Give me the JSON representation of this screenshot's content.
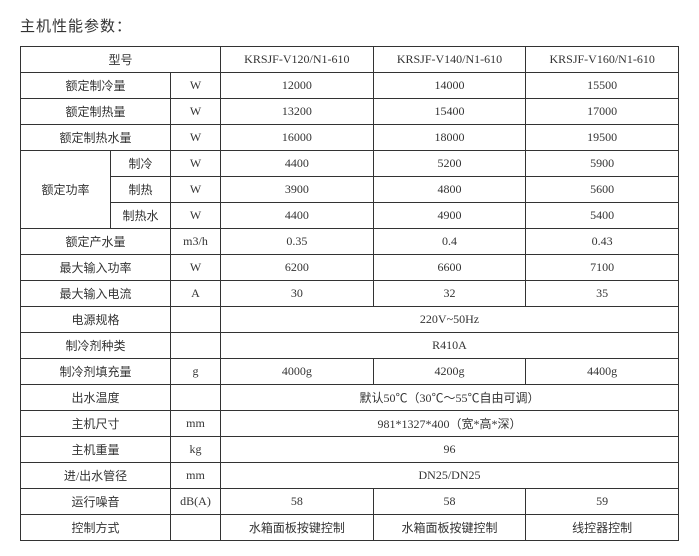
{
  "title": "主机性能参数：",
  "header": {
    "model_label": "型号",
    "models": [
      "KRSJF-V120/N1-610",
      "KRSJF-V140/N1-610",
      "KRSJF-V160/N1-610"
    ]
  },
  "rows": {
    "cooling_cap": {
      "label": "额定制冷量",
      "unit": "W",
      "vals": [
        "12000",
        "14000",
        "15500"
      ]
    },
    "heating_cap": {
      "label": "额定制热量",
      "unit": "W",
      "vals": [
        "13200",
        "15400",
        "17000"
      ]
    },
    "hotwater_cap": {
      "label": "额定制热水量",
      "unit": "W",
      "vals": [
        "16000",
        "18000",
        "19500"
      ]
    },
    "rated_power": {
      "label": "额定功率",
      "sub": {
        "cool": {
          "label": "制冷",
          "unit": "W",
          "vals": [
            "4400",
            "5200",
            "5900"
          ]
        },
        "heat": {
          "label": "制热",
          "unit": "W",
          "vals": [
            "3900",
            "4800",
            "5600"
          ]
        },
        "water": {
          "label": "制热水",
          "unit": "W",
          "vals": [
            "4400",
            "4900",
            "5400"
          ]
        }
      }
    },
    "water_output": {
      "label": "额定产水量",
      "unit": "m3/h",
      "vals": [
        "0.35",
        "0.4",
        "0.43"
      ]
    },
    "max_input_pw": {
      "label": "最大输入功率",
      "unit": "W",
      "vals": [
        "6200",
        "6600",
        "7100"
      ]
    },
    "max_input_cur": {
      "label": "最大输入电流",
      "unit": "A",
      "vals": [
        "30",
        "32",
        "35"
      ]
    },
    "power_spec": {
      "label": "电源规格",
      "unit": "",
      "merged": "220V~50Hz"
    },
    "refrigerant": {
      "label": "制冷剂种类",
      "unit": "",
      "merged": "R410A"
    },
    "refri_charge": {
      "label": "制冷剂填充量",
      "unit": "g",
      "vals": [
        "4000g",
        "4200g",
        "4400g"
      ]
    },
    "outlet_temp": {
      "label": "出水温度",
      "unit": "",
      "merged": "默认50℃（30℃～55℃自由可调）"
    },
    "dimensions": {
      "label": "主机尺寸",
      "unit": "mm",
      "merged": "981*1327*400（宽*高*深）"
    },
    "weight": {
      "label": "主机重量",
      "unit": "kg",
      "merged": "96"
    },
    "pipe_dia": {
      "label": "进/出水管径",
      "unit": "mm",
      "merged": "DN25/DN25"
    },
    "noise": {
      "label": "运行噪音",
      "unit": "dB(A)",
      "vals": [
        "58",
        "58",
        "59"
      ]
    },
    "control": {
      "label": "控制方式",
      "unit": "",
      "vals": [
        "水箱面板按键控制",
        "水箱面板按键控制",
        "线控器控制"
      ]
    }
  }
}
